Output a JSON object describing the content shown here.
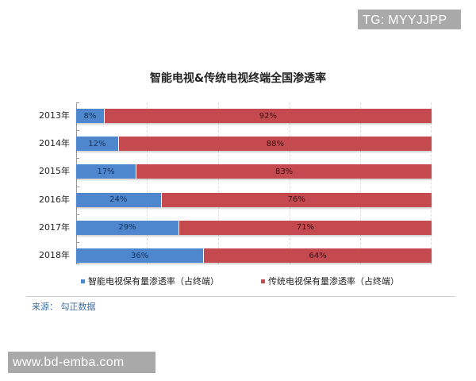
{
  "watermarks": {
    "top": "TG: MYYJJPP",
    "bottom": "www.bd-emba.com"
  },
  "colors": {
    "smart": "#4f87cf",
    "traditional": "#c44a50"
  },
  "source_label": "来源：  勾正数据",
  "chart_data": {
    "type": "bar",
    "orientation": "horizontal",
    "stacked": "100%",
    "title": "智能电视&传统电视终端全国渗透率",
    "categories": [
      "2013年",
      "2014年",
      "2015年",
      "2016年",
      "2017年",
      "2018年"
    ],
    "series": [
      {
        "name": "智能电视保有量渗透率（占终端）",
        "color": "#4f87cf",
        "values": [
          8,
          12,
          17,
          24,
          29,
          36
        ],
        "labels": [
          "8%",
          "12%",
          "17%",
          "24%",
          "29%",
          "36%"
        ]
      },
      {
        "name": "传统电视保有量渗透率（占终端）",
        "color": "#c44a50",
        "values": [
          92,
          88,
          83,
          76,
          71,
          64
        ],
        "labels": [
          "92%",
          "88%",
          "83%",
          "76%",
          "71%",
          "64%"
        ]
      }
    ],
    "xlabel": "",
    "ylabel": "",
    "xlim": [
      0,
      100
    ],
    "grid": true,
    "legend_position": "bottom",
    "source": "来源：  勾正数据"
  }
}
